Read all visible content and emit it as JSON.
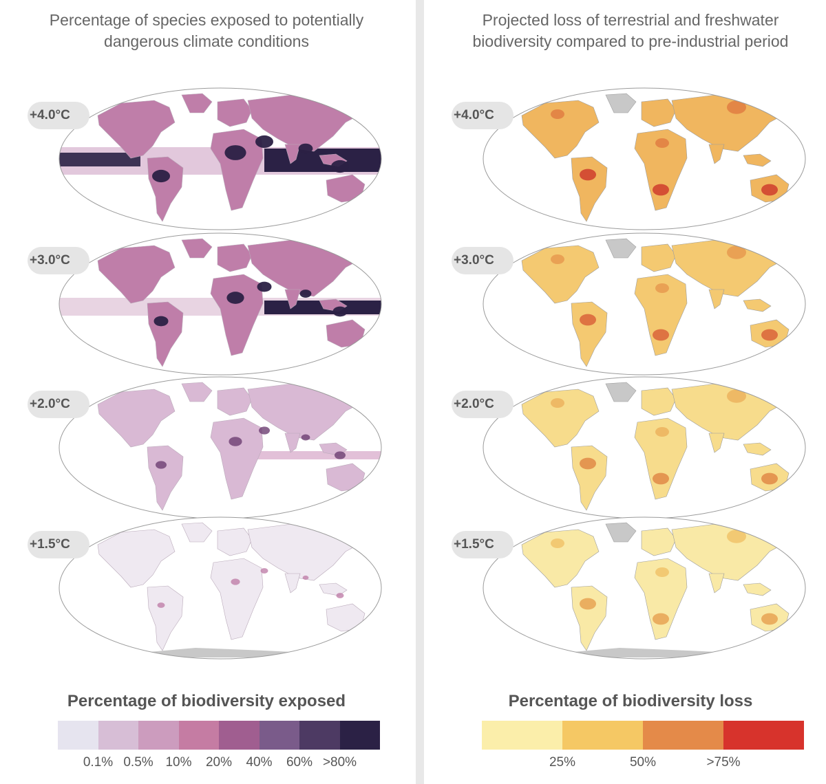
{
  "left_panel": {
    "title_lines": [
      "Percentage of species exposed to potentially",
      "dangerous climate conditions"
    ],
    "maps": [
      {
        "label": "+4.0°C",
        "level": 4
      },
      {
        "label": "+3.0°C",
        "level": 3
      },
      {
        "label": "+2.0°C",
        "level": 2
      },
      {
        "label": "+1.5°C",
        "level": 1
      }
    ],
    "legend_title": "Percentage of biodiversity exposed",
    "legend_colors": [
      "#e6e4ef",
      "#d7bed6",
      "#cc9cbe",
      "#c57ca3",
      "#a05e90",
      "#7a5b8a",
      "#4d3a63",
      "#2b2145"
    ],
    "legend_ticks": [
      "0.1%",
      "0.5%",
      "10%",
      "20%",
      "40%",
      "60%",
      ">80%"
    ]
  },
  "right_panel": {
    "title_lines": [
      "Projected loss of terrestrial and freshwater",
      "biodiversity compared to pre-industrial period"
    ],
    "maps": [
      {
        "label": "+4.0°C",
        "level": 4
      },
      {
        "label": "+3.0°C",
        "level": 3
      },
      {
        "label": "+2.0°C",
        "level": 2
      },
      {
        "label": "+1.5°C",
        "level": 1
      }
    ],
    "legend_title": "Percentage of biodiversity loss",
    "legend_colors": [
      "#fbeeaa",
      "#f5c864",
      "#e48a49",
      "#d7332c"
    ],
    "legend_ticks": [
      "25%",
      "50%",
      ">75%"
    ]
  }
}
